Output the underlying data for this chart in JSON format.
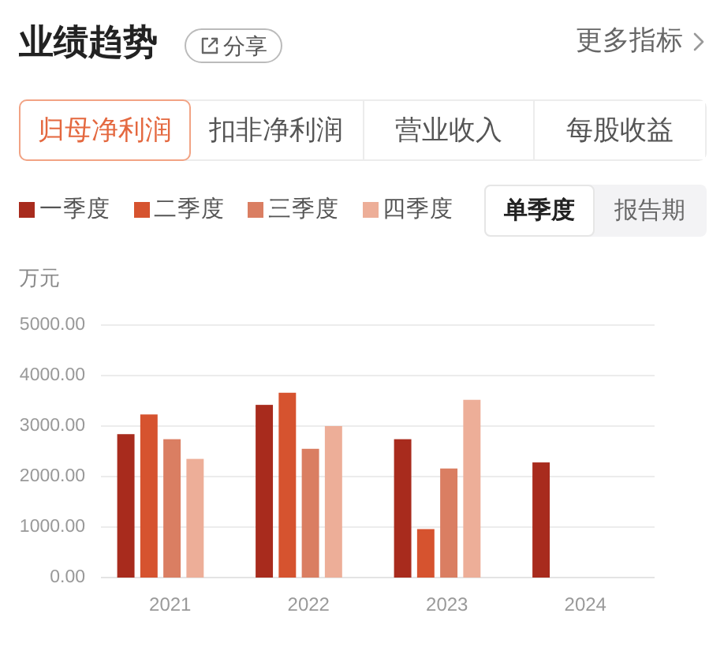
{
  "chart_data": {
    "type": "bar",
    "title": "业绩趋势",
    "ylabel": "万元",
    "categories": [
      "2021",
      "2022",
      "2023",
      "2024"
    ],
    "series": [
      {
        "name": "一季度",
        "color": "#a82b1d",
        "values": [
          2840,
          3420,
          2740,
          2280
        ]
      },
      {
        "name": "二季度",
        "color": "#d6532f",
        "values": [
          3230,
          3660,
          960,
          null
        ]
      },
      {
        "name": "三季度",
        "color": "#da7e62",
        "values": [
          2740,
          2550,
          2160,
          null
        ]
      },
      {
        "name": "四季度",
        "color": "#edae98",
        "values": [
          2350,
          3000,
          3520,
          null
        ]
      }
    ],
    "ylim": [
      0,
      5000
    ],
    "yticks": [
      {
        "value": 0,
        "label": "0.00"
      },
      {
        "value": 1000,
        "label": "1000.00"
      },
      {
        "value": 2000,
        "label": "2000.00"
      },
      {
        "value": 3000,
        "label": "3000.00"
      },
      {
        "value": 4000,
        "label": "4000.00"
      },
      {
        "value": 5000,
        "label": "5000.00"
      }
    ],
    "grid": "y",
    "legend": "top left",
    "annotations": [
      "分享",
      "更多指标",
      "归母净利润",
      "扣非净利润",
      "营业收入",
      "每股收益",
      "单季度",
      "报告期"
    ]
  }
}
